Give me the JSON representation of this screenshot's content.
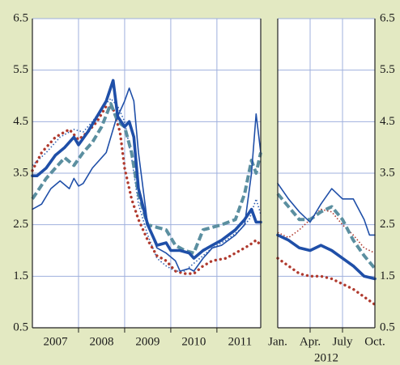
{
  "chart_data": [
    {
      "type": "line",
      "xlim": [
        2007,
        2011.95
      ],
      "ylim": [
        0.5,
        6.5
      ],
      "yticks": [
        0.5,
        1.5,
        2.5,
        3.5,
        4.5,
        5.5,
        6.5
      ],
      "yaxis_side": "left",
      "grid": true,
      "xgrid": [
        2008,
        2009,
        2010,
        2011
      ],
      "xticks": [
        {
          "value": 2007.5,
          "label": "2007"
        },
        {
          "value": 2008.5,
          "label": "2008"
        },
        {
          "value": 2009.5,
          "label": "2009"
        },
        {
          "value": 2010.5,
          "label": "2010"
        },
        {
          "value": 2011.5,
          "label": "2011"
        }
      ],
      "series": [
        {
          "color": "#2f5fb0",
          "style": "dotted-thin",
          "x": [
            2007.0,
            2007.3,
            2007.6,
            2007.9,
            2008.1,
            2008.3,
            2008.5,
            2008.7,
            2008.85,
            2009.0,
            2009.15,
            2009.3,
            2009.5,
            2009.7,
            2009.9,
            2010.1,
            2010.3,
            2010.5,
            2010.7,
            2010.9,
            2011.2,
            2011.5,
            2011.7,
            2011.85,
            2011.95
          ],
          "values": [
            3.65,
            3.9,
            4.2,
            4.35,
            4.3,
            4.5,
            4.75,
            4.95,
            4.8,
            4.5,
            3.8,
            2.9,
            2.3,
            1.85,
            1.7,
            1.6,
            1.6,
            1.75,
            1.9,
            2.05,
            2.2,
            2.4,
            2.6,
            3.0,
            2.7
          ]
        },
        {
          "color": "#b03a2e",
          "style": "dotted",
          "x": [
            2007.0,
            2007.2,
            2007.5,
            2007.8,
            2008.0,
            2008.2,
            2008.4,
            2008.6,
            2008.75,
            2008.9,
            2009.0,
            2009.15,
            2009.3,
            2009.5,
            2009.7,
            2009.9,
            2010.1,
            2010.3,
            2010.5,
            2010.7,
            2010.9,
            2011.2,
            2011.5,
            2011.7,
            2011.85,
            2011.95
          ],
          "values": [
            3.55,
            3.9,
            4.2,
            4.35,
            4.15,
            4.3,
            4.5,
            4.8,
            4.75,
            4.3,
            3.6,
            3.0,
            2.6,
            2.2,
            1.9,
            1.8,
            1.6,
            1.55,
            1.55,
            1.7,
            1.8,
            1.85,
            2.0,
            2.1,
            2.2,
            2.1
          ]
        },
        {
          "color": "#5b8fa0",
          "style": "dashed",
          "x": [
            2007.0,
            2007.3,
            2007.5,
            2007.7,
            2007.9,
            2008.1,
            2008.3,
            2008.5,
            2008.7,
            2008.85,
            2009.0,
            2009.15,
            2009.3,
            2009.5,
            2009.7,
            2009.9,
            2010.1,
            2010.3,
            2010.5,
            2010.7,
            2010.9,
            2011.1,
            2011.4,
            2011.6,
            2011.75,
            2011.85,
            2011.95
          ],
          "values": [
            3.0,
            3.4,
            3.6,
            3.8,
            3.65,
            3.9,
            4.1,
            4.4,
            4.85,
            4.5,
            4.4,
            3.9,
            3.1,
            2.5,
            2.45,
            2.4,
            2.1,
            2.0,
            1.95,
            2.4,
            2.45,
            2.5,
            2.6,
            3.1,
            3.75,
            3.5,
            3.9
          ]
        },
        {
          "color": "#1f4fa8",
          "style": "thin",
          "x": [
            2007.0,
            2007.2,
            2007.4,
            2007.6,
            2007.8,
            2007.9,
            2008.0,
            2008.1,
            2008.3,
            2008.6,
            2008.8,
            2009.0,
            2009.1,
            2009.2,
            2009.3,
            2009.5,
            2009.7,
            2009.9,
            2010.1,
            2010.2,
            2010.4,
            2010.5,
            2010.7,
            2010.9,
            2011.1,
            2011.4,
            2011.6,
            2011.75,
            2011.85,
            2011.95
          ],
          "values": [
            2.8,
            2.9,
            3.2,
            3.35,
            3.2,
            3.4,
            3.25,
            3.3,
            3.6,
            3.9,
            4.5,
            4.9,
            5.15,
            4.9,
            3.9,
            2.5,
            2.05,
            1.95,
            1.8,
            1.6,
            1.65,
            1.6,
            1.85,
            2.05,
            2.1,
            2.3,
            2.5,
            3.5,
            4.65,
            3.9
          ]
        },
        {
          "color": "#1f4fa8",
          "style": "thick",
          "x": [
            2007.0,
            2007.1,
            2007.3,
            2007.5,
            2007.7,
            2007.9,
            2008.0,
            2008.2,
            2008.4,
            2008.6,
            2008.75,
            2008.85,
            2009.0,
            2009.1,
            2009.2,
            2009.3,
            2009.5,
            2009.7,
            2009.9,
            2010.0,
            2010.2,
            2010.4,
            2010.5,
            2010.7,
            2010.9,
            2011.1,
            2011.4,
            2011.6,
            2011.75,
            2011.85,
            2011.95
          ],
          "values": [
            3.45,
            3.45,
            3.6,
            3.85,
            4.0,
            4.2,
            4.05,
            4.3,
            4.6,
            4.9,
            5.3,
            4.6,
            4.4,
            4.5,
            4.2,
            3.2,
            2.5,
            2.1,
            2.15,
            2.0,
            2.0,
            1.95,
            1.85,
            2.0,
            2.1,
            2.2,
            2.4,
            2.6,
            2.8,
            2.55,
            2.55
          ]
        }
      ]
    },
    {
      "type": "line",
      "xlim": [
        1,
        10
      ],
      "ylim": [
        0.5,
        6.5
      ],
      "yticks": [
        0.5,
        1.5,
        2.5,
        3.5,
        4.5,
        5.5,
        6.5
      ],
      "yaxis_side": "right",
      "grid": true,
      "xgrid": [
        4,
        7
      ],
      "xticks": [
        {
          "value": 1,
          "label": "Jan."
        },
        {
          "value": 4,
          "label": "Apr."
        },
        {
          "value": 7,
          "label": "July"
        },
        {
          "value": 10,
          "label": "Oct."
        }
      ],
      "xlabel": "2012",
      "series": [
        {
          "color": "#b03a2e",
          "style": "dotted-thin",
          "x": [
            1,
            2,
            3,
            4,
            5,
            6,
            7,
            8,
            9,
            10
          ],
          "values": [
            2.35,
            2.25,
            2.4,
            2.6,
            2.8,
            2.75,
            2.5,
            2.3,
            2.05,
            1.95
          ]
        },
        {
          "color": "#b03a2e",
          "style": "dotted",
          "x": [
            1,
            2,
            3,
            4,
            5,
            6,
            7,
            8,
            9,
            10
          ],
          "values": [
            1.85,
            1.7,
            1.55,
            1.5,
            1.5,
            1.45,
            1.35,
            1.25,
            1.1,
            0.95
          ]
        },
        {
          "color": "#5b8fa0",
          "style": "dashed",
          "x": [
            1,
            2,
            3,
            4,
            5,
            6,
            7,
            8,
            9,
            10
          ],
          "values": [
            3.1,
            2.85,
            2.6,
            2.6,
            2.75,
            2.85,
            2.6,
            2.2,
            1.9,
            1.65
          ]
        },
        {
          "color": "#1f4fa8",
          "style": "thin",
          "x": [
            1,
            2,
            3,
            4,
            5,
            6,
            7,
            8,
            9,
            9.5,
            10
          ],
          "values": [
            3.3,
            3.0,
            2.75,
            2.55,
            2.9,
            3.2,
            3.0,
            3.0,
            2.6,
            2.3,
            2.3
          ]
        },
        {
          "color": "#1f4fa8",
          "style": "thick",
          "x": [
            1,
            2,
            3,
            4,
            5,
            6,
            7,
            8,
            9,
            10
          ],
          "values": [
            2.3,
            2.2,
            2.05,
            2.0,
            2.1,
            2.0,
            1.85,
            1.7,
            1.5,
            1.45
          ]
        }
      ]
    }
  ]
}
